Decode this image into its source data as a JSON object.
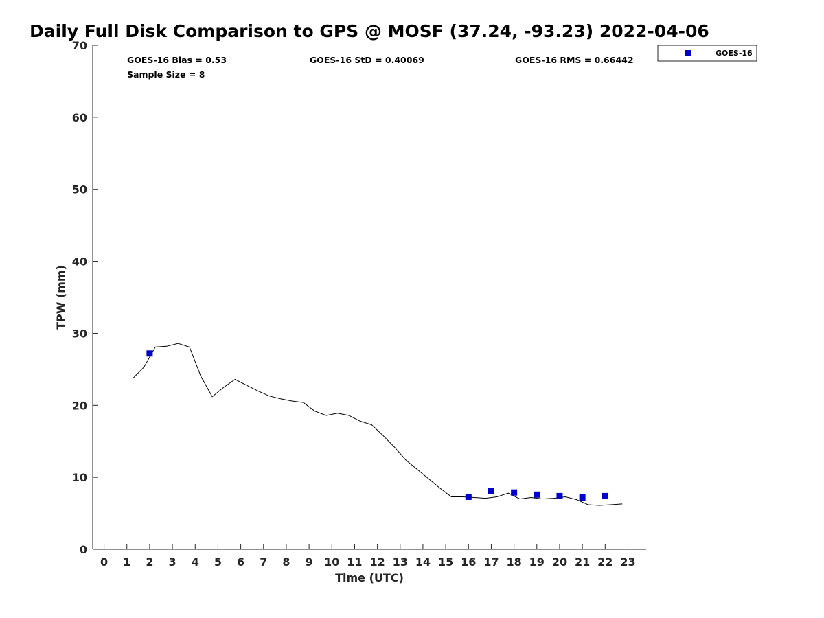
{
  "chart_data": {
    "type": "line+scatter",
    "title": "Daily Full Disk Comparison to GPS @ MOSF (37.24, -93.23) 2022-04-06",
    "xlabel": "Time (UTC)",
    "ylabel": "TPW (mm)",
    "xlim": [
      -0.5,
      23.8
    ],
    "ylim": [
      0,
      70
    ],
    "x_ticks": [
      "0",
      "1",
      "2",
      "3",
      "4",
      "5",
      "6",
      "7",
      "8",
      "9",
      "10",
      "11",
      "12",
      "13",
      "14",
      "15",
      "16",
      "17",
      "18",
      "19",
      "20",
      "21",
      "22",
      "23"
    ],
    "y_ticks": [
      "0",
      "10",
      "20",
      "30",
      "40",
      "50",
      "60",
      "70"
    ],
    "grid": false,
    "stats": {
      "bias": "GOES-16 Bias = 0.53",
      "std": "GOES-16 StD = 0.40069",
      "rms": "GOES-16 RMS = 0.66442",
      "sample_size": "Sample Size = 8"
    },
    "legend": {
      "position": "top-right-outside",
      "label": "GOES-16"
    },
    "colors": {
      "goes": "#0000cd",
      "gps": "#000000",
      "axis": "#262626"
    },
    "gps_series": {
      "name": "GPS",
      "x": [
        1.25,
        1.75,
        2.25,
        2.75,
        3.25,
        3.75,
        4.25,
        4.75,
        5.25,
        5.75,
        6.25,
        6.75,
        7.25,
        7.75,
        8.25,
        8.75,
        9.25,
        9.75,
        10.25,
        10.75,
        11.25,
        11.75,
        12.25,
        12.75,
        13.25,
        13.75,
        14.25,
        14.75,
        15.25,
        15.75,
        16.25,
        16.75,
        17.25,
        17.75,
        18.25,
        18.75,
        19.25,
        19.75,
        20.25,
        20.75,
        21.25,
        21.75,
        22.25,
        22.75
      ],
      "y": [
        23.7,
        25.3,
        28.1,
        28.2,
        28.6,
        28.1,
        24.0,
        21.2,
        22.5,
        23.6,
        22.8,
        22.0,
        21.3,
        20.9,
        20.6,
        20.4,
        19.2,
        18.6,
        18.9,
        18.6,
        17.8,
        17.3,
        15.8,
        14.2,
        12.4,
        11.1,
        9.8,
        8.5,
        7.3,
        7.3,
        7.2,
        7.1,
        7.3,
        7.8,
        7.0,
        7.2,
        7.0,
        7.1,
        7.3,
        6.9,
        6.2,
        6.1,
        6.2,
        6.3
      ]
    },
    "goes_series": {
      "name": "GOES-16",
      "x": [
        2,
        16,
        17,
        18,
        19,
        20,
        21,
        22
      ],
      "y": [
        27.2,
        7.3,
        8.1,
        7.9,
        7.6,
        7.4,
        7.2,
        7.4
      ]
    }
  }
}
